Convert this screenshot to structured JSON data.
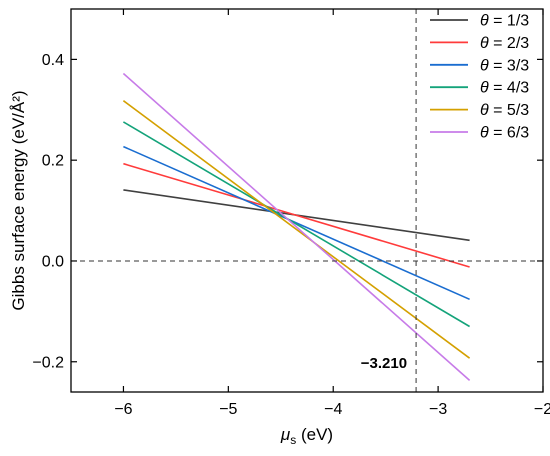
{
  "chart_data": {
    "type": "line",
    "xlabel": {
      "symbol": "μ",
      "subscript": "s",
      "unit": " (eV)"
    },
    "ylabel": "Gibbs surface energy (eV/Å²)",
    "xlim": [
      -6.5,
      -2
    ],
    "ylim": [
      -0.26,
      0.5
    ],
    "x_ticks": [
      -6,
      -5,
      -4,
      -3,
      -2
    ],
    "x_tick_labels": [
      "−6",
      "−5",
      "−4",
      "−3",
      "−2"
    ],
    "y_ticks": [
      -0.2,
      0.0,
      0.2,
      0.4
    ],
    "y_tick_labels": [
      "−0.2",
      "0.0",
      "0.2",
      "0.4"
    ],
    "grid": false,
    "legend_position": "top-right",
    "reference_lines": {
      "vertical_x": -3.21,
      "horizontal_y": 0.0
    },
    "annotation": {
      "text": "−3.210",
      "x": -3.21
    },
    "series": [
      {
        "name": "θ = 1/3",
        "color": "#404040",
        "points": [
          [
            -6,
            0.141
          ],
          [
            -2.7,
            0.041
          ]
        ]
      },
      {
        "name": "θ = 2/3",
        "color": "#ff3b3b",
        "points": [
          [
            -6,
            0.193
          ],
          [
            -2.7,
            -0.012
          ]
        ]
      },
      {
        "name": "θ = 3/3",
        "color": "#1a6dd0",
        "points": [
          [
            -6,
            0.227
          ],
          [
            -2.7,
            -0.076
          ]
        ]
      },
      {
        "name": "θ = 4/3",
        "color": "#14a37a",
        "points": [
          [
            -6,
            0.276
          ],
          [
            -2.7,
            -0.13
          ]
        ]
      },
      {
        "name": "θ = 5/3",
        "color": "#d4a000",
        "points": [
          [
            -6,
            0.318
          ],
          [
            -2.7,
            -0.193
          ]
        ]
      },
      {
        "name": "θ = 6/3",
        "color": "#c77be8",
        "points": [
          [
            -6,
            0.372
          ],
          [
            -2.7,
            -0.237
          ]
        ]
      }
    ]
  }
}
